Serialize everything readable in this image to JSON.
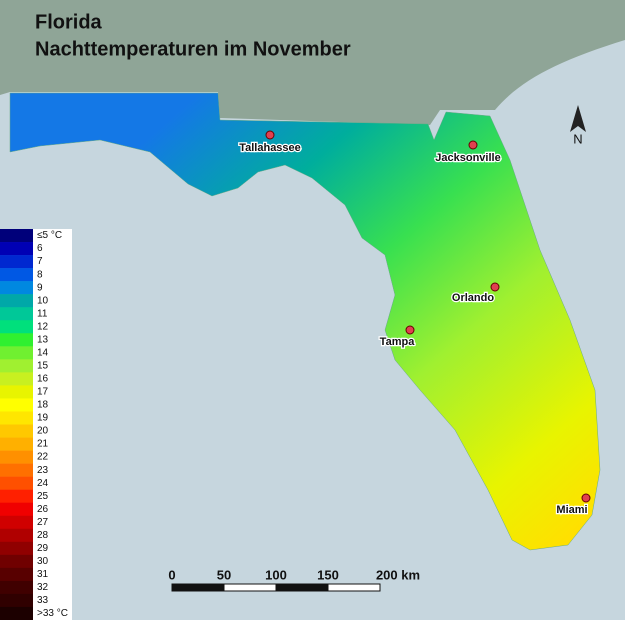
{
  "header": {
    "title": "Florida",
    "subtitle": "Nachttemperaturen im November"
  },
  "legend": [
    {
      "label": "≤5 °C",
      "color": "#00007a"
    },
    {
      "label": 6,
      "color": "#0000b4"
    },
    {
      "label": 7,
      "color": "#0028d0"
    },
    {
      "label": 8,
      "color": "#0058e4"
    },
    {
      "label": 9,
      "color": "#0088e0"
    },
    {
      "label": 10,
      "color": "#00a8a8"
    },
    {
      "label": 11,
      "color": "#00c898"
    },
    {
      "label": 12,
      "color": "#00e07c"
    },
    {
      "label": 13,
      "color": "#30f030"
    },
    {
      "label": 14,
      "color": "#70f030"
    },
    {
      "label": 15,
      "color": "#a0f030"
    },
    {
      "label": 16,
      "color": "#c8f020"
    },
    {
      "label": 17,
      "color": "#e8f400"
    },
    {
      "label": 18,
      "color": "#ffff00"
    },
    {
      "label": 19,
      "color": "#ffe600"
    },
    {
      "label": 20,
      "color": "#ffc800"
    },
    {
      "label": 21,
      "color": "#ffb000"
    },
    {
      "label": 22,
      "color": "#ff9000"
    },
    {
      "label": 23,
      "color": "#ff7000"
    },
    {
      "label": 24,
      "color": "#ff5000"
    },
    {
      "label": 25,
      "color": "#ff2000"
    },
    {
      "label": 26,
      "color": "#f00000"
    },
    {
      "label": 27,
      "color": "#d00000"
    },
    {
      "label": 28,
      "color": "#b00000"
    },
    {
      "label": 29,
      "color": "#900000"
    },
    {
      "label": 30,
      "color": "#700000"
    },
    {
      "label": 31,
      "color": "#580000"
    },
    {
      "label": 32,
      "color": "#400000"
    },
    {
      "label": 33,
      "color": "#300000"
    },
    {
      "label": ">33 °C",
      "color": "#1c0000"
    }
  ],
  "cities": [
    "Tallahassee",
    "Jacksonville",
    "Orlando",
    "Tampa",
    "Miami"
  ],
  "scale": [
    0,
    50,
    100,
    150,
    "200 km"
  ],
  "north": "N"
}
